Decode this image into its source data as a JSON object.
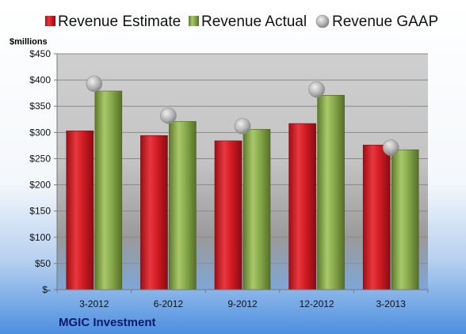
{
  "chart_data": {
    "type": "bar",
    "title": "",
    "unit_label": "$millions",
    "company": "MGIC Investment",
    "categories": [
      "3-2012",
      "6-2012",
      "9-2012",
      "12-2012",
      "3-2013"
    ],
    "series": [
      {
        "name": "Revenue Estimate",
        "kind": "bar",
        "color": "#d41c24",
        "values": [
          303,
          294,
          284,
          317,
          276
        ]
      },
      {
        "name": "Revenue Actual",
        "kind": "bar",
        "color": "#8aac4c",
        "values": [
          379,
          321,
          306,
          371,
          267
        ]
      },
      {
        "name": "Revenue GAAP",
        "kind": "marker",
        "color": "#a8a8a8",
        "values": [
          393,
          332,
          312,
          382,
          271
        ]
      }
    ],
    "ylim": [
      0,
      450
    ],
    "yticks": [
      0,
      50,
      100,
      150,
      200,
      250,
      300,
      350,
      400,
      450
    ],
    "ytick_labels": [
      "$-",
      "$50",
      "$100",
      "$150",
      "$200",
      "$250",
      "$300",
      "$350",
      "$400",
      "$450"
    ],
    "grid": true,
    "legend_position": "top"
  }
}
